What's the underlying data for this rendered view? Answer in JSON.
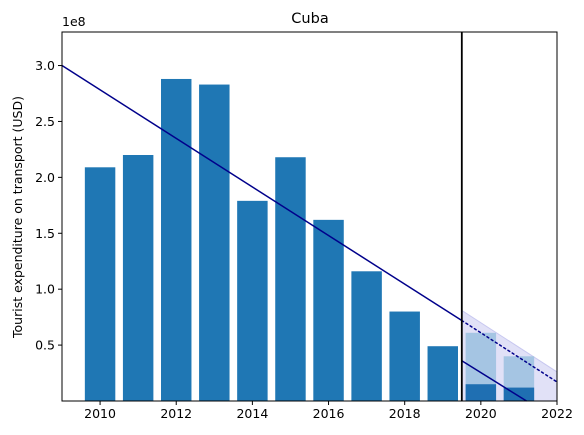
{
  "chart_data": {
    "type": "bar",
    "title": "Cuba",
    "xlabel": "",
    "ylabel": "Tourist expenditure on transport (USD)",
    "y_offset_label": "1e8",
    "y_scale": 100000000,
    "xlim": [
      2009,
      2022
    ],
    "ylim": [
      0,
      330000000
    ],
    "grid": false,
    "x_ticks": [
      2010,
      2012,
      2014,
      2016,
      2018,
      2020,
      2022
    ],
    "y_ticks": [
      50000000,
      100000000,
      150000000,
      200000000,
      250000000,
      300000000
    ],
    "x_tick_labels": [
      "2010",
      "2012",
      "2014",
      "2016",
      "2018",
      "2020",
      "2022"
    ],
    "y_tick_labels": [
      "0.5",
      "1.0",
      "1.5",
      "2.0",
      "2.5",
      "3.0"
    ],
    "bar_color": "#1f77b4",
    "bars": [
      {
        "x": 2010,
        "value": 209000000
      },
      {
        "x": 2011,
        "value": 220000000
      },
      {
        "x": 2012,
        "value": 288000000
      },
      {
        "x": 2013,
        "value": 283000000
      },
      {
        "x": 2014,
        "value": 179000000
      },
      {
        "x": 2015,
        "value": 218000000
      },
      {
        "x": 2016,
        "value": 162000000
      },
      {
        "x": 2017,
        "value": 116000000
      },
      {
        "x": 2018,
        "value": 80000000
      },
      {
        "x": 2019,
        "value": 49000000
      }
    ],
    "forecast_bars": [
      {
        "x": 2020,
        "upper": 61000000,
        "lower": 15000000
      },
      {
        "x": 2021,
        "upper": 40000000,
        "lower": 12000000
      }
    ],
    "forecast_upper_color": "#a5c5e3",
    "forecast_lower_color": "#1f6fb2",
    "trend_line": {
      "color": "#00008b",
      "points": [
        [
          2009,
          300000000
        ],
        [
          2019.5,
          72000000
        ]
      ]
    },
    "trend_forecast_dotted": {
      "color": "#00008b",
      "points": [
        [
          2019.5,
          72000000
        ],
        [
          2022,
          17000000
        ]
      ]
    },
    "trend_forecast_lower": {
      "color": "#00008b",
      "points": [
        [
          2019.5,
          36000000
        ],
        [
          2021.2,
          0
        ]
      ]
    },
    "forecast_band": {
      "color": "#c8c8f0",
      "upper": [
        [
          2019.5,
          81000000
        ],
        [
          2022,
          26000000
        ]
      ],
      "lower": [
        [
          2019.5,
          0
        ],
        [
          2022,
          0
        ]
      ]
    },
    "vertical_line": {
      "x": 2019.5,
      "color": "#000000"
    }
  }
}
